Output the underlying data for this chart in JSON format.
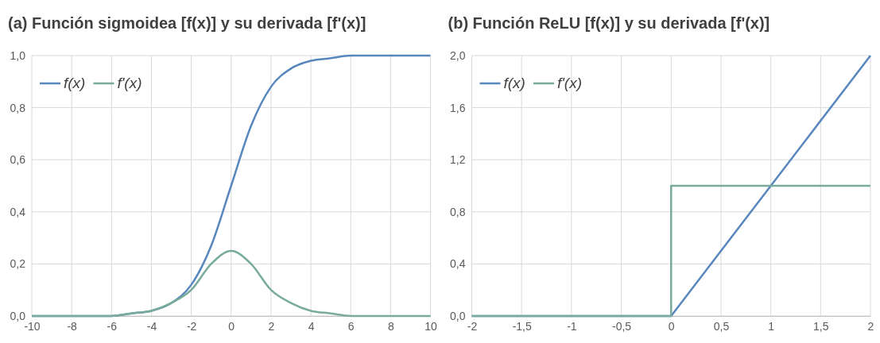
{
  "chart_data": [
    {
      "type": "line",
      "title": "(a) Función sigmoidea [f(x)] y su derivada [f'(x)]",
      "x": [
        -10,
        -9,
        -8,
        -7,
        -6,
        -5,
        -4,
        -3,
        -2,
        -1,
        0,
        1,
        2,
        3,
        4,
        5,
        6,
        7,
        8,
        9,
        10
      ],
      "series": [
        {
          "name": "f(x)",
          "color": "#5887bd",
          "values": [
            0,
            0,
            0,
            0,
            0,
            0.01,
            0.02,
            0.05,
            0.12,
            0.27,
            0.5,
            0.73,
            0.88,
            0.95,
            0.98,
            0.99,
            1,
            1,
            1,
            1,
            1
          ]
        },
        {
          "name": "f'(x)",
          "color": "#78ab9a",
          "values": [
            0,
            0,
            0,
            0,
            0,
            0.01,
            0.02,
            0.05,
            0.1,
            0.2,
            0.25,
            0.2,
            0.1,
            0.05,
            0.02,
            0.01,
            0,
            0,
            0,
            0,
            0
          ]
        }
      ],
      "xlim": [
        -10,
        10
      ],
      "xticks": [
        -10,
        -8,
        -6,
        -4,
        -2,
        0,
        2,
        4,
        6,
        8,
        10
      ],
      "ylim": [
        0,
        1
      ],
      "yticks": [
        {
          "value": 0,
          "label": "0,0"
        },
        {
          "value": 0.2,
          "label": "0,2"
        },
        {
          "value": 0.4,
          "label": "0,4"
        },
        {
          "value": 0.6,
          "label": "0,6"
        },
        {
          "value": 0.8,
          "label": "0,8"
        },
        {
          "value": 1,
          "label": "1,0"
        }
      ],
      "grid": true,
      "legend": "top left"
    },
    {
      "type": "line",
      "title": "(b) Función ReLU [f(x)] y su derivada [f'(x)]",
      "series": [
        {
          "name": "f(x)",
          "color": "#5887bd",
          "x": [
            -2,
            0,
            2
          ],
          "values": [
            0,
            0,
            2
          ]
        },
        {
          "name": "f'(x)",
          "color": "#78ab9a",
          "x": [
            -2,
            0,
            0,
            2
          ],
          "values": [
            0,
            0,
            1,
            1
          ]
        }
      ],
      "xlim": [
        -2,
        2
      ],
      "xticks": [
        -2,
        {
          "value": -1.5,
          "label": "-1,5"
        },
        -1,
        {
          "value": -0.5,
          "label": "-0,5"
        },
        0,
        {
          "value": 0.5,
          "label": "0,5"
        },
        1,
        {
          "value": 1.5,
          "label": "1,5"
        },
        2
      ],
      "ylim": [
        0,
        2
      ],
      "yticks": [
        {
          "value": 0,
          "label": "0,0"
        },
        {
          "value": 0.4,
          "label": "0,4"
        },
        {
          "value": 0.8,
          "label": "0,8"
        },
        {
          "value": 1.2,
          "label": "1,2"
        },
        {
          "value": 1.6,
          "label": "1,6"
        },
        {
          "value": 2,
          "label": "2,0"
        }
      ],
      "grid": true,
      "legend": "top left"
    }
  ]
}
